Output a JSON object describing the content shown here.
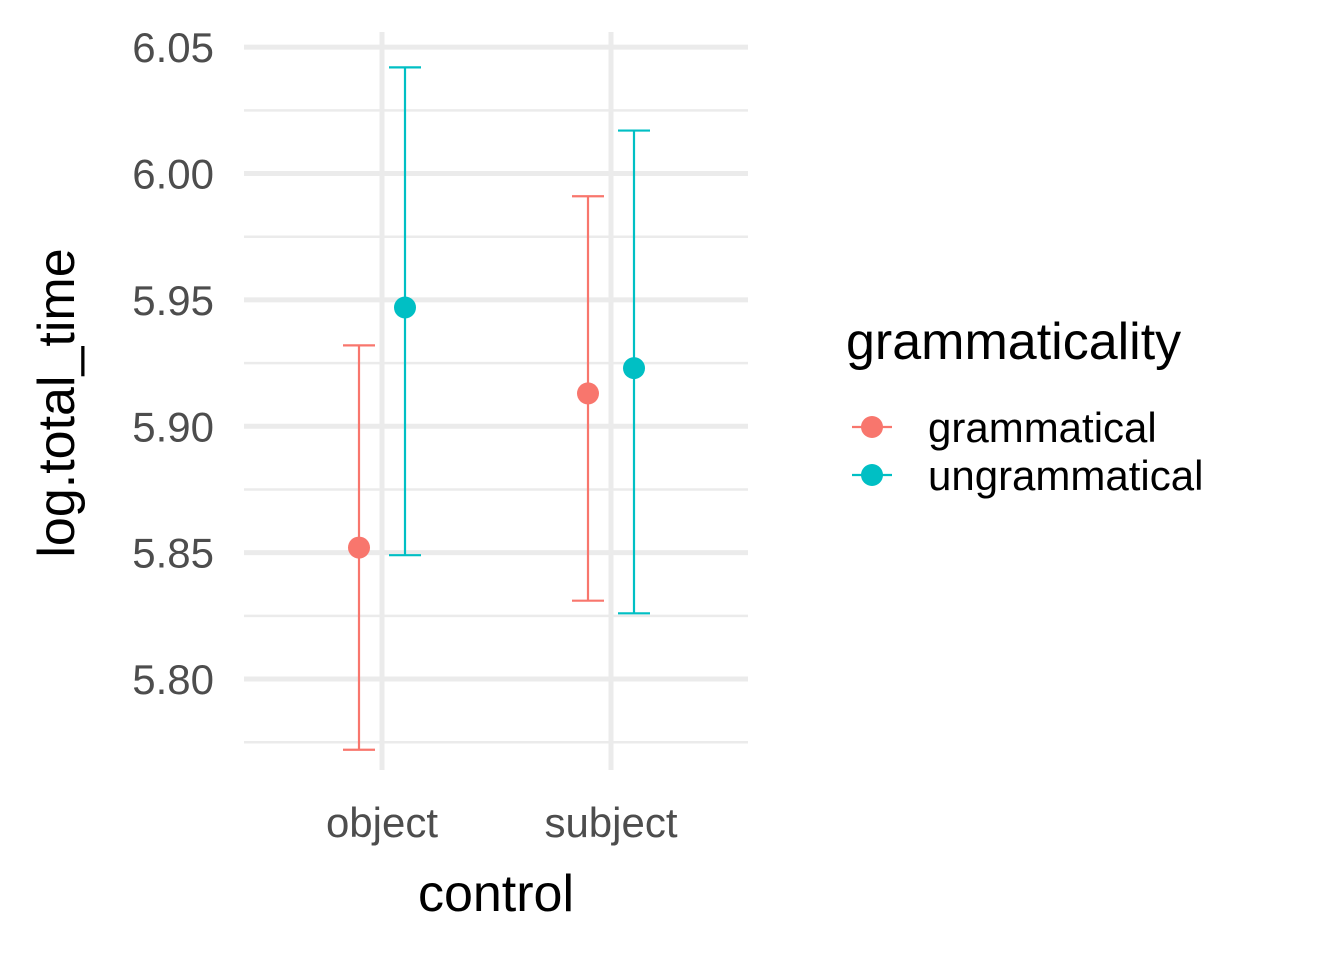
{
  "chart_data": {
    "type": "scatter",
    "xlabel": "control",
    "ylabel": "log.total_time",
    "categories": [
      "object",
      "subject"
    ],
    "y_ticks": [
      "5.80",
      "5.85",
      "5.90",
      "5.95",
      "6.00",
      "6.05"
    ],
    "ylim": [
      5.764,
      6.056
    ],
    "grid": true,
    "legend": {
      "title": "grammaticality",
      "position": "right"
    },
    "series": [
      {
        "name": "grammatical",
        "color": "#F8766D",
        "points": [
          {
            "x": "object",
            "y": 5.852,
            "ymin": 5.772,
            "ymax": 5.932
          },
          {
            "x": "subject",
            "y": 5.913,
            "ymin": 5.831,
            "ymax": 5.991
          }
        ]
      },
      {
        "name": "ungrammatical",
        "color": "#00BFC4",
        "points": [
          {
            "x": "object",
            "y": 5.947,
            "ymin": 5.849,
            "ymax": 6.042
          },
          {
            "x": "subject",
            "y": 5.923,
            "ymin": 5.826,
            "ymax": 6.017
          }
        ]
      }
    ]
  }
}
